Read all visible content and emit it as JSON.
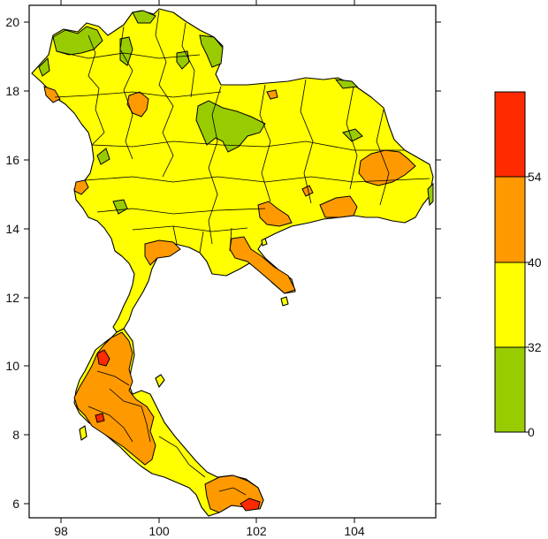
{
  "map": {
    "x_axis": {
      "ticks": [
        "98",
        "100",
        "102",
        "104"
      ]
    },
    "y_axis": {
      "ticks": [
        "6",
        "8",
        "10",
        "12",
        "14",
        "16",
        "18",
        "20"
      ]
    },
    "colors": {
      "below_32": "#99cc00",
      "32_to_40": "#ffff00",
      "40_to_54": "#ff9900",
      "above_54": "#ff2a00",
      "boundary": "#000000"
    }
  },
  "legend": {
    "labels": [
      "0",
      "32",
      "40",
      "54"
    ],
    "colors": [
      "#99cc00",
      "#ffff00",
      "#ff9900",
      "#ff2a00"
    ]
  }
}
